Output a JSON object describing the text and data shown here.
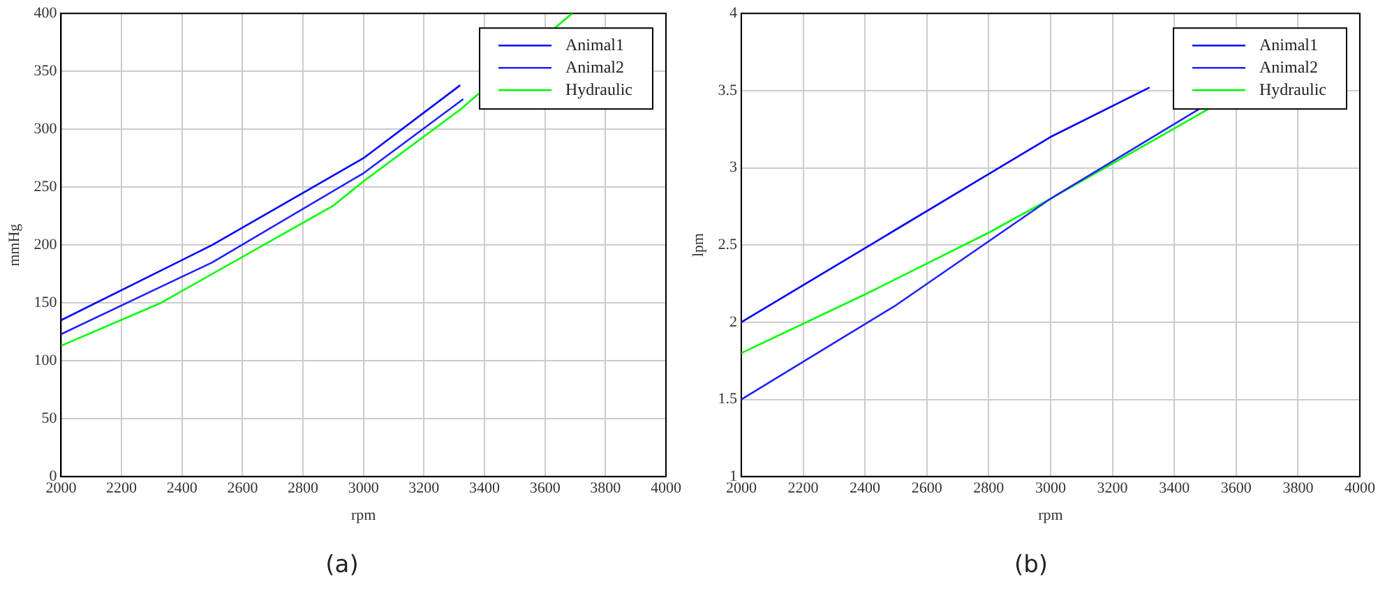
{
  "chart_data": [
    {
      "type": "line",
      "xlabel": "rpm",
      "ylabel": "mmHg",
      "xlim": [
        2000,
        4000
      ],
      "xticks": [
        2000,
        2200,
        2400,
        2600,
        2800,
        3000,
        3200,
        3400,
        3600,
        3800,
        4000
      ],
      "ylim": [
        0,
        400
      ],
      "yticks": [
        0,
        50,
        100,
        150,
        200,
        250,
        300,
        350,
        400
      ],
      "grid": true,
      "legend": "top right",
      "marker": "none",
      "line_style": "solid",
      "annotations": [
        "(a)"
      ],
      "series": [
        {
          "name": "Animal1",
          "color": "#0000ff",
          "x": [
            2000,
            2500,
            3000,
            3320
          ],
          "values": [
            135,
            200,
            275,
            338
          ]
        },
        {
          "name": "Animal2",
          "color": "#2020ff",
          "x": [
            2000,
            2500,
            3000,
            3330
          ],
          "values": [
            123,
            185,
            262,
            326
          ]
        },
        {
          "name": "Hydraulic",
          "color": "#00ff00",
          "x": [
            2000,
            2330,
            2900,
            3000,
            3320,
            3640,
            3690
          ],
          "values": [
            113,
            150,
            234,
            255,
            317,
            389,
            400
          ]
        }
      ]
    },
    {
      "type": "line",
      "xlabel": "rpm",
      "ylabel": "lpm",
      "xlim": [
        2000,
        4000
      ],
      "xticks": [
        2000,
        2200,
        2400,
        2600,
        2800,
        3000,
        3200,
        3400,
        3600,
        3800,
        4000
      ],
      "ylim": [
        1,
        4
      ],
      "yticks": [
        1,
        1.5,
        2,
        2.5,
        3,
        3.5,
        4
      ],
      "grid": true,
      "legend": "top right",
      "marker": "none",
      "line_style": "solid",
      "annotations": [
        "(b)"
      ],
      "series": [
        {
          "name": "Animal1",
          "color": "#0000ff",
          "x": [
            2000,
            3000,
            3320
          ],
          "values": [
            2.0,
            3.2,
            3.52
          ]
        },
        {
          "name": "Animal2",
          "color": "#2020ff",
          "x": [
            2000,
            2500,
            3000,
            3480
          ],
          "values": [
            1.5,
            2.11,
            2.8,
            3.38
          ]
        },
        {
          "name": "Hydraulic",
          "color": "#00ff00",
          "x": [
            2000,
            2400,
            2800,
            3000,
            3510
          ],
          "values": [
            1.8,
            2.18,
            2.58,
            2.8,
            3.38
          ]
        }
      ]
    }
  ]
}
